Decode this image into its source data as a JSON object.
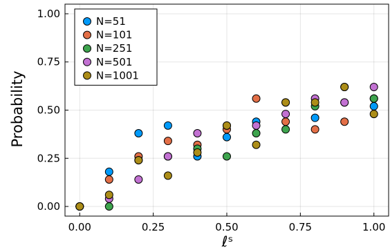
{
  "chart_data": {
    "type": "scatter",
    "title": "",
    "xlabel": "ℓˢ",
    "ylabel": "Probability",
    "xlim": [
      -0.05,
      1.05
    ],
    "ylim": [
      -0.05,
      1.05
    ],
    "xticks": [
      0.0,
      0.25,
      0.5,
      0.75,
      1.0
    ],
    "yticks": [
      0.0,
      0.25,
      0.5,
      0.75,
      1.0
    ],
    "xtick_labels": [
      "0.00",
      "0.25",
      "0.50",
      "0.75",
      "1.00"
    ],
    "ytick_labels": [
      "0.00",
      "0.25",
      "0.50",
      "0.75",
      "1.00"
    ],
    "grid": true,
    "legend_position": "top-left",
    "series": [
      {
        "name": "N=51",
        "color": "#009AFA",
        "x": [
          0.0,
          0.1,
          0.2,
          0.3,
          0.4,
          0.5,
          0.6,
          0.7,
          0.8,
          0.9,
          1.0
        ],
        "y": [
          0.0,
          0.18,
          0.38,
          0.42,
          0.26,
          0.36,
          0.44,
          0.54,
          0.46,
          0.54,
          0.52
        ]
      },
      {
        "name": "N=101",
        "color": "#E36F47",
        "x": [
          0.0,
          0.1,
          0.2,
          0.3,
          0.4,
          0.5,
          0.6,
          0.7,
          0.8,
          0.9,
          1.0
        ],
        "y": [
          0.0,
          0.14,
          0.26,
          0.34,
          0.32,
          0.4,
          0.56,
          0.44,
          0.4,
          0.44,
          0.56
        ]
      },
      {
        "name": "N=251",
        "color": "#3EA44E",
        "x": [
          0.0,
          0.1,
          0.2,
          0.3,
          0.4,
          0.5,
          0.6,
          0.7,
          0.8,
          0.9,
          1.0
        ],
        "y": [
          0.0,
          0.0,
          0.24,
          0.26,
          0.3,
          0.26,
          0.38,
          0.4,
          0.52,
          0.62,
          0.56
        ]
      },
      {
        "name": "N=501",
        "color": "#C271D2",
        "x": [
          0.0,
          0.1,
          0.2,
          0.3,
          0.4,
          0.5,
          0.6,
          0.7,
          0.8,
          0.9,
          1.0
        ],
        "y": [
          0.0,
          0.04,
          0.14,
          0.26,
          0.38,
          0.42,
          0.42,
          0.48,
          0.56,
          0.54,
          0.62
        ]
      },
      {
        "name": "N=1001",
        "color": "#AC8D18",
        "x": [
          0.0,
          0.1,
          0.2,
          0.3,
          0.4,
          0.5,
          0.6,
          0.7,
          0.8,
          0.9,
          1.0
        ],
        "y": [
          0.0,
          0.06,
          0.24,
          0.16,
          0.28,
          0.42,
          0.32,
          0.54,
          0.54,
          0.62,
          0.48
        ]
      }
    ]
  }
}
